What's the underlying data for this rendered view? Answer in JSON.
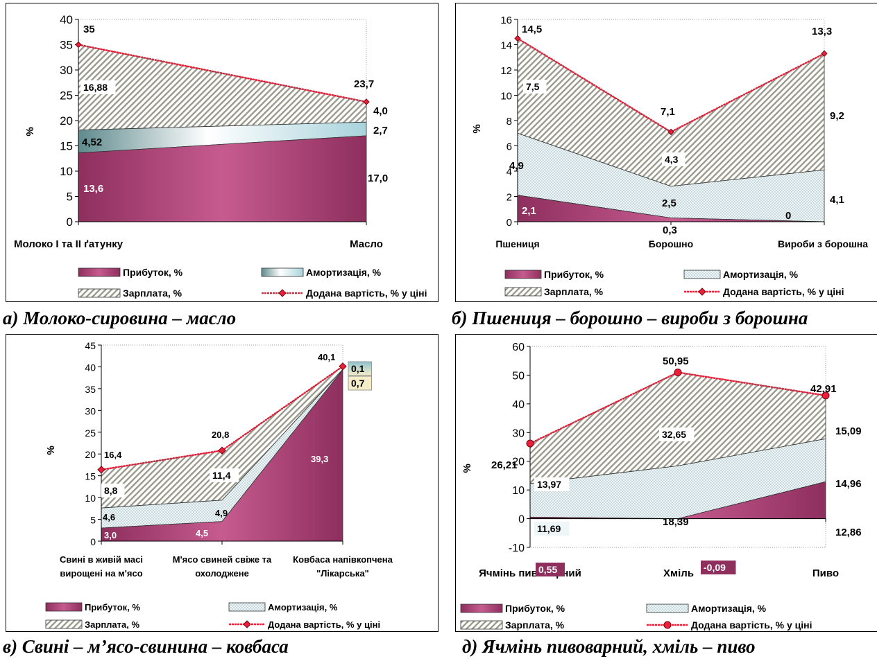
{
  "chart_data": [
    {
      "type": "area",
      "ylabel": "%",
      "ylim": [
        0,
        40
      ],
      "yticks": [
        0,
        5,
        10,
        15,
        20,
        25,
        30,
        35,
        40
      ],
      "categories": [
        "Молоко I та II ґатунку",
        "Масло"
      ],
      "series": [
        {
          "name": "Прибуток, %",
          "values": [
            13.6,
            17.0
          ],
          "labels": [
            "13,6",
            "17,0"
          ]
        },
        {
          "name": "Амортизація, %",
          "values": [
            4.52,
            2.7
          ],
          "labels": [
            "4,52",
            "2,7"
          ]
        },
        {
          "name": "Зарплата, %",
          "values": [
            16.88,
            4.0
          ],
          "labels": [
            "16,88",
            "4,0"
          ]
        },
        {
          "name": "Додана вартість, % у ціні",
          "values": [
            35,
            23.7
          ],
          "labels": [
            "35",
            "23,7"
          ]
        }
      ],
      "caption": "а) Молоко-сировина – масло"
    },
    {
      "type": "area",
      "ylabel": "%",
      "ylim": [
        0,
        16
      ],
      "yticks": [
        0,
        2,
        4,
        6,
        8,
        10,
        12,
        14,
        16
      ],
      "categories": [
        "Пшениця",
        "Борошно",
        "Вироби з борошна"
      ],
      "series": [
        {
          "name": "Прибуток, %",
          "values": [
            2.1,
            0.3,
            0
          ],
          "labels": [
            "2,1",
            "0,3",
            "0"
          ]
        },
        {
          "name": "Амортизація, %",
          "values": [
            4.9,
            2.5,
            4.1
          ],
          "labels": [
            "4,9",
            "2,5",
            "4,1"
          ]
        },
        {
          "name": "Зарплата, %",
          "values": [
            7.5,
            4.3,
            9.2
          ],
          "labels": [
            "7,5",
            "4,3",
            "9,2"
          ]
        },
        {
          "name": "Додана вартість, % у ціні",
          "values": [
            14.5,
            7.1,
            13.3
          ],
          "labels": [
            "14,5",
            "7,1",
            "13,3"
          ]
        }
      ],
      "caption": "б) Пшениця – борошно – вироби з борошна"
    },
    {
      "type": "area",
      "ylabel": "%",
      "ylim": [
        0,
        45
      ],
      "yticks": [
        0,
        5,
        10,
        15,
        20,
        25,
        30,
        35,
        40,
        45
      ],
      "categories": [
        "Свині в живій масі вирощені на м'ясо",
        "М'ясо свиней свіже та охолоджене",
        "Ковбаса напівкопчена \"Лікарська\""
      ],
      "category_lines": [
        [
          "Свині в живій масі",
          "вирощені на м'ясо"
        ],
        [
          "М'ясо свиней свіже та",
          "охолоджене"
        ],
        [
          "Ковбаса напівкопчена",
          "\"Лікарська\""
        ]
      ],
      "series": [
        {
          "name": "Прибуток, %",
          "values": [
            3.0,
            4.5,
            39.3
          ],
          "labels": [
            "3,0",
            "4,5",
            "39,3"
          ]
        },
        {
          "name": "Амортизація, %",
          "values": [
            4.6,
            4.9,
            0.1
          ],
          "labels": [
            "4,6",
            "4,9",
            "0,1"
          ]
        },
        {
          "name": "Зарплата, %",
          "values": [
            8.8,
            11.4,
            0.7
          ],
          "labels": [
            "8,8",
            "11,4",
            "0,7"
          ]
        },
        {
          "name": "Додана вартість, % у ціні",
          "values": [
            16.4,
            20.8,
            40.1
          ],
          "labels": [
            "16,4",
            "20,8",
            "40,1"
          ]
        }
      ],
      "caption": "в) Свині – м’ясо-свинина – ковбаса"
    },
    {
      "type": "area",
      "ylabel": "%",
      "ylim": [
        -10,
        60
      ],
      "yticks": [
        -10,
        0,
        10,
        20,
        30,
        40,
        50,
        60
      ],
      "categories": [
        "Ячмінь пивоварний",
        "Хміль",
        "Пиво"
      ],
      "series": [
        {
          "name": "Прибуток, %",
          "values": [
            0.55,
            -0.09,
            12.86
          ],
          "labels": [
            "0,55",
            "-0,09",
            "12,86"
          ]
        },
        {
          "name": "Амортизація, %",
          "values": [
            11.69,
            18.39,
            14.96
          ],
          "labels": [
            "11,69",
            "18,39",
            "14,96"
          ]
        },
        {
          "name": "Зарплата, %",
          "values": [
            13.97,
            32.65,
            15.09
          ],
          "labels": [
            "13,97",
            "32,65",
            "15,09"
          ]
        },
        {
          "name": "Додана вартість, % у ціні",
          "values": [
            26.21,
            50.95,
            42.91
          ],
          "labels": [
            "26,21",
            "50,95",
            "42,91"
          ]
        }
      ],
      "caption": "д) Ячмінь пивоварний, хміль –  пиво"
    }
  ],
  "colors": {
    "profit": "#8e2f5e",
    "profit_light": "#c65b8f",
    "depreciation": "#d3e8ee",
    "depreciation_dark": "#5f8a8d",
    "salary_fill": "#ffffff",
    "salary_hatch": "#9a9a8c",
    "added_value": "#e8203a",
    "marker": "#e8203a"
  }
}
